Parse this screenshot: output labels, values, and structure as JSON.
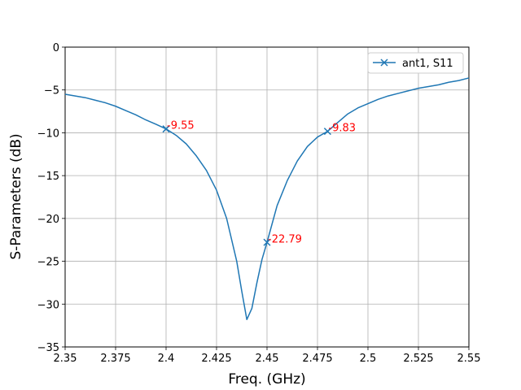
{
  "chart_data": {
    "type": "line",
    "xlabel": "Freq. (GHz)",
    "ylabel": "S-Parameters (dB)",
    "xlim": [
      2.35,
      2.55
    ],
    "ylim": [
      -35,
      0
    ],
    "x_ticks": [
      2.35,
      2.375,
      2.4,
      2.425,
      2.45,
      2.475,
      2.5,
      2.525,
      2.55
    ],
    "x_tick_labels": [
      "2.35",
      "2.375",
      "2.4",
      "2.425",
      "2.45",
      "2.475",
      "2.5",
      "2.525",
      "2.55"
    ],
    "y_ticks": [
      0,
      -5,
      -10,
      -15,
      -20,
      -25,
      -30,
      -35
    ],
    "y_tick_labels": [
      "0",
      "−5",
      "−10",
      "−15",
      "−20",
      "−25",
      "−30",
      "−35"
    ],
    "grid": true,
    "legend_position": "top-right",
    "series": [
      {
        "name": "ant1, S11",
        "color": "#1f77b4",
        "marker": "x",
        "x": [
          2.35,
          2.355,
          2.36,
          2.365,
          2.37,
          2.375,
          2.38,
          2.385,
          2.39,
          2.395,
          2.4,
          2.405,
          2.41,
          2.415,
          2.42,
          2.425,
          2.43,
          2.435,
          2.4375,
          2.44,
          2.4425,
          2.445,
          2.4475,
          2.45,
          2.455,
          2.46,
          2.465,
          2.47,
          2.475,
          2.48,
          2.485,
          2.49,
          2.495,
          2.5,
          2.505,
          2.51,
          2.515,
          2.52,
          2.525,
          2.53,
          2.535,
          2.54,
          2.545,
          2.55
        ],
        "y": [
          -5.5,
          -5.7,
          -5.9,
          -6.2,
          -6.5,
          -6.9,
          -7.4,
          -7.9,
          -8.5,
          -9.0,
          -9.55,
          -10.3,
          -11.3,
          -12.7,
          -14.4,
          -16.7,
          -20.0,
          -25.0,
          -28.5,
          -31.8,
          -30.5,
          -27.5,
          -24.8,
          -22.79,
          -18.5,
          -15.6,
          -13.3,
          -11.6,
          -10.5,
          -9.83,
          -8.8,
          -7.8,
          -7.1,
          -6.6,
          -6.1,
          -5.7,
          -5.4,
          -5.1,
          -4.8,
          -4.6,
          -4.4,
          -4.1,
          -3.9,
          -3.6
        ]
      }
    ],
    "annotations": [
      {
        "x": 2.4,
        "y": -9.55,
        "text": "-9.55",
        "color": "#ff0000"
      },
      {
        "x": 2.45,
        "y": -22.79,
        "text": "-22.79",
        "color": "#ff0000"
      },
      {
        "x": 2.48,
        "y": -9.83,
        "text": "-9.83",
        "color": "#ff0000"
      }
    ]
  }
}
